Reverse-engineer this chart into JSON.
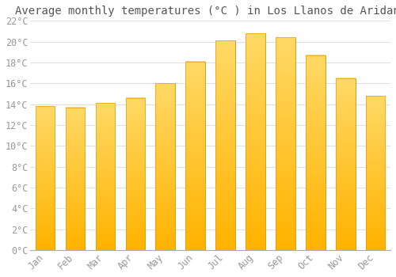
{
  "title": "Average monthly temperatures (°C ) in Los Llanos de Aridane",
  "months": [
    "Jan",
    "Feb",
    "Mar",
    "Apr",
    "May",
    "Jun",
    "Jul",
    "Aug",
    "Sep",
    "Oct",
    "Nov",
    "Dec"
  ],
  "values": [
    13.8,
    13.7,
    14.1,
    14.6,
    16.0,
    18.1,
    20.1,
    20.8,
    20.4,
    18.7,
    16.5,
    14.8
  ],
  "bar_color_bottom": "#FFB300",
  "bar_color_top": "#FFD966",
  "bar_edge_color": "#E09000",
  "background_color": "#FFFFFF",
  "grid_color": "#E0E0E0",
  "ylim": [
    0,
    22
  ],
  "yticks": [
    0,
    2,
    4,
    6,
    8,
    10,
    12,
    14,
    16,
    18,
    20,
    22
  ],
  "title_fontsize": 10,
  "tick_fontsize": 8.5,
  "tick_label_color": "#999999",
  "title_color": "#555555",
  "font_family": "monospace"
}
